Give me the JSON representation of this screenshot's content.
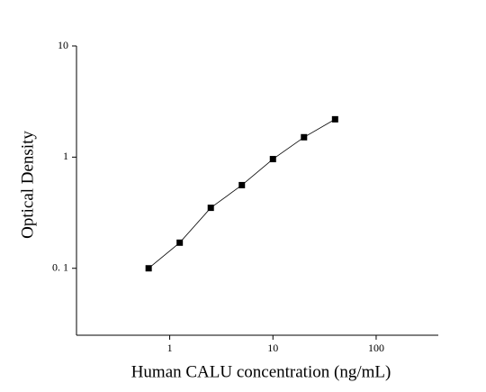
{
  "chart_data": {
    "type": "line",
    "marker": "square",
    "color": "#000000",
    "xlabel": "Human CALU concentration (ng/mL)",
    "ylabel": "Optical Density",
    "xscale": "log",
    "yscale": "log",
    "x": [
      0.625,
      1.25,
      2.5,
      5,
      10,
      20,
      40
    ],
    "values": [
      0.1,
      0.17,
      0.35,
      0.56,
      0.96,
      1.51,
      2.19
    ],
    "xlim": [
      0.125,
      400
    ],
    "ylim": [
      0.025,
      10
    ],
    "xticks": [
      1,
      10,
      100
    ],
    "yticks": [
      {
        "value": 0.1,
        "label": "0. 1"
      },
      1,
      10
    ]
  }
}
